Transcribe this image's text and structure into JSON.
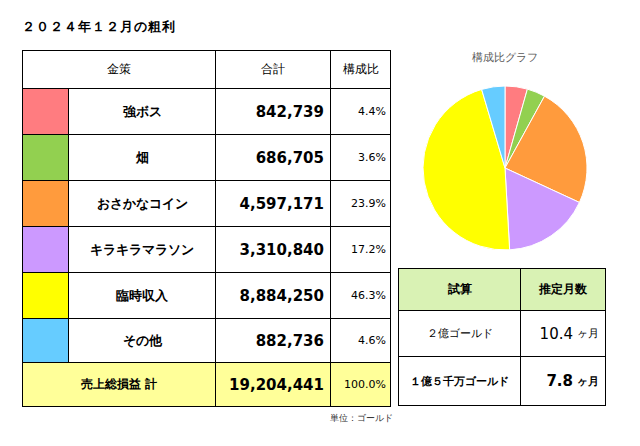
{
  "title": "２０２４年１２月の粗利",
  "table": {
    "header": [
      "金策",
      "合計",
      "構成比"
    ],
    "rows": [
      {
        "name": "強ボス",
        "total": "842,739",
        "ratio": "4.4%"
      },
      {
        "name": "畑",
        "total": "686,705",
        "ratio": "3.6%"
      },
      {
        "name": "おさかなコイン",
        "total": "4,597,171",
        "ratio": "23.9%"
      },
      {
        "name": "キラキラマラソン",
        "total": "3,310,840",
        "ratio": "17.2%"
      },
      {
        "name": "臨時収入",
        "total": "8,884,250",
        "ratio": "46.3%"
      },
      {
        "name": "その他",
        "total": "882,736",
        "ratio": "4.6%"
      }
    ],
    "total_row": {
      "label": "売上総損益 計",
      "total": "19,204,441",
      "ratio": "100.0%"
    }
  },
  "unit_note": "単位：ゴールド",
  "chart_data": {
    "type": "pie",
    "title": "構成比グラフ",
    "categories": [
      "強ボス",
      "畑",
      "おさかなコイン",
      "キラキラマラソン",
      "臨時収入",
      "その他"
    ],
    "values": [
      4.4,
      3.6,
      23.9,
      17.2,
      46.3,
      4.6
    ],
    "colors": [
      "#ff7c80",
      "#92d050",
      "#ff9b3d",
      "#cc99ff",
      "#ffff00",
      "#66ccff"
    ],
    "data_labels": false
  },
  "estimate_table": {
    "header": [
      "試算",
      "推定月数"
    ],
    "rows": [
      {
        "label": "２億ゴールド",
        "months": "10.4",
        "unit": "ヶ月",
        "bold": false
      },
      {
        "label": "１億５千万ゴールド",
        "months": "7.8",
        "unit": "ヶ月",
        "bold": true
      }
    ]
  }
}
